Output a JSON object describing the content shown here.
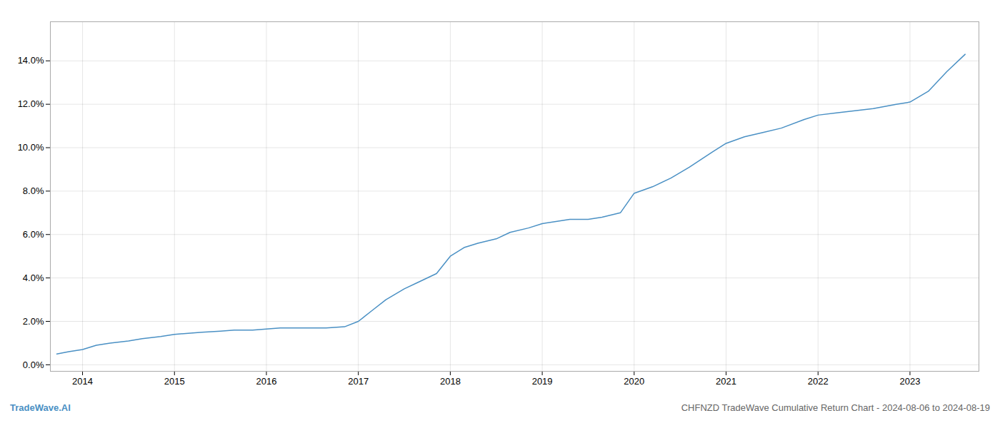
{
  "chart_data": {
    "type": "line",
    "title": "CHFNZD TradeWave Cumulative Return Chart - 2024-08-06 to 2024-08-19",
    "annotations": [
      {
        "text": "TradeWave.AI",
        "color": "#4a90c4"
      }
    ],
    "x": [
      2013.72,
      2013.85,
      2014.0,
      2014.15,
      2014.3,
      2014.5,
      2014.65,
      2014.85,
      2015.0,
      2015.15,
      2015.3,
      2015.5,
      2015.65,
      2015.85,
      2016.0,
      2016.15,
      2016.3,
      2016.5,
      2016.65,
      2016.85,
      2017.0,
      2017.15,
      2017.3,
      2017.5,
      2017.65,
      2017.85,
      2018.0,
      2018.15,
      2018.3,
      2018.5,
      2018.65,
      2018.85,
      2019.0,
      2019.15,
      2019.3,
      2019.5,
      2019.65,
      2019.85,
      2020.0,
      2020.2,
      2020.4,
      2020.6,
      2020.85,
      2021.0,
      2021.2,
      2021.4,
      2021.6,
      2021.85,
      2022.0,
      2022.2,
      2022.4,
      2022.6,
      2022.85,
      2023.0,
      2023.2,
      2023.4,
      2023.6
    ],
    "values": [
      0.005,
      0.006,
      0.007,
      0.009,
      0.01,
      0.011,
      0.012,
      0.013,
      0.014,
      0.0145,
      0.015,
      0.0155,
      0.016,
      0.016,
      0.0165,
      0.017,
      0.017,
      0.017,
      0.017,
      0.0175,
      0.02,
      0.025,
      0.03,
      0.035,
      0.038,
      0.042,
      0.05,
      0.054,
      0.056,
      0.058,
      0.061,
      0.063,
      0.065,
      0.066,
      0.067,
      0.067,
      0.068,
      0.07,
      0.079,
      0.082,
      0.086,
      0.091,
      0.098,
      0.102,
      0.105,
      0.107,
      0.109,
      0.113,
      0.115,
      0.116,
      0.117,
      0.118,
      0.12,
      0.121,
      0.126,
      0.135,
      0.143
    ],
    "color": "#4a90c4",
    "xlim": [
      2013.65,
      2023.75
    ],
    "xticks": [
      2014,
      2015,
      2016,
      2017,
      2018,
      2019,
      2020,
      2021,
      2022,
      2023
    ],
    "ylim": [
      -0.003,
      0.158
    ],
    "yticks": [
      {
        "value": 0.0,
        "label": "0.0%"
      },
      {
        "value": 0.02,
        "label": "2.0%"
      },
      {
        "value": 0.04,
        "label": "4.0%"
      },
      {
        "value": 0.06,
        "label": "6.0%"
      },
      {
        "value": 0.08,
        "label": "8.0%"
      },
      {
        "value": 0.1,
        "label": "10.0%"
      },
      {
        "value": 0.12,
        "label": "12.0%"
      },
      {
        "value": 0.14,
        "label": "14.0%"
      }
    ],
    "grid": true
  }
}
